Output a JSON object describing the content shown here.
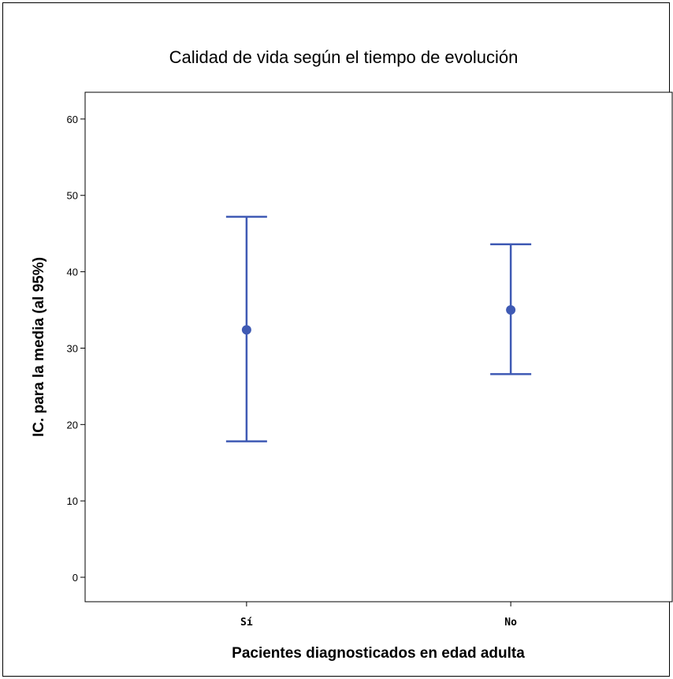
{
  "chart_data": {
    "type": "errorbar",
    "title": "Calidad de vida según el tiempo de evolución",
    "xlabel": "Pacientes diagnosticados en edad adulta",
    "ylabel": "IC. para la media (al 95%)",
    "categories": [
      "Sí",
      "No"
    ],
    "series": [
      {
        "mean": [
          32.4,
          35.0
        ],
        "lower": [
          17.8,
          26.6
        ],
        "upper": [
          47.2,
          43.6
        ]
      }
    ],
    "ylim": [
      -3.2,
      63.5
    ],
    "yticks": [
      0,
      10,
      20,
      30,
      40,
      50,
      60
    ],
    "grid": false,
    "legend": "none",
    "color": "#3f5ab4"
  }
}
